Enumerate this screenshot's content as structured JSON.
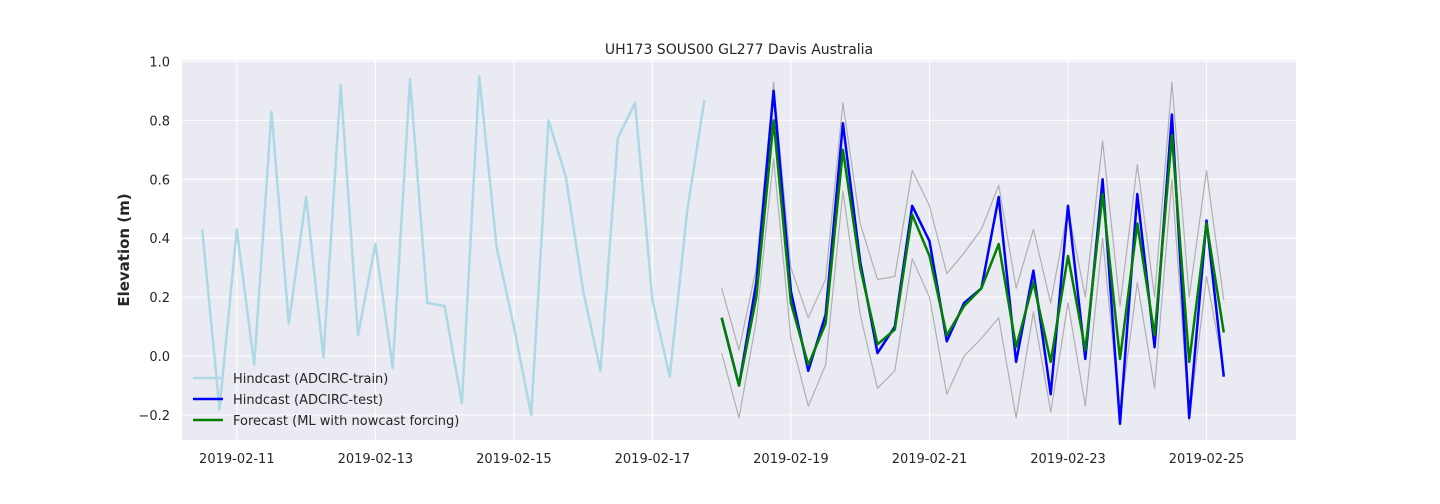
{
  "chart_data": {
    "type": "line",
    "title": "UH173 SOUS00 GL277 Davis Australia",
    "xlabel": "",
    "ylabel": "Elevation (m)",
    "xlim": [
      "2019-02-10T05:00",
      "2019-02-26T07:00"
    ],
    "ylim": [
      -0.285,
      1.005
    ],
    "x_ticks": [
      "2019-02-11",
      "2019-02-13",
      "2019-02-15",
      "2019-02-17",
      "2019-02-19",
      "2019-02-21",
      "2019-02-23",
      "2019-02-25"
    ],
    "y_ticks": [
      "−0.2",
      "0.0",
      "0.2",
      "0.4",
      "0.6",
      "0.8",
      "1.0"
    ],
    "y_tick_values": [
      -0.2,
      0.0,
      0.2,
      0.4,
      0.6,
      0.8,
      1.0
    ],
    "grid": true,
    "legend": "lower-left",
    "series": [
      {
        "name": "Hindcast (ADCIRC-train)",
        "color": "#add8e6",
        "x": [
          "2019-02-10T12:00",
          "2019-02-10T18:00",
          "2019-02-11T00:00",
          "2019-02-11T06:00",
          "2019-02-11T12:00",
          "2019-02-11T18:00",
          "2019-02-12T00:00",
          "2019-02-12T06:00",
          "2019-02-12T12:00",
          "2019-02-12T18:00",
          "2019-02-13T00:00",
          "2019-02-13T06:00",
          "2019-02-13T12:00",
          "2019-02-13T18:00",
          "2019-02-14T00:00",
          "2019-02-14T06:00",
          "2019-02-14T12:00",
          "2019-02-14T18:00",
          "2019-02-15T00:00",
          "2019-02-15T06:00",
          "2019-02-15T12:00",
          "2019-02-15T18:00",
          "2019-02-16T00:00",
          "2019-02-16T06:00",
          "2019-02-16T12:00",
          "2019-02-16T18:00",
          "2019-02-17T00:00",
          "2019-02-17T06:00",
          "2019-02-17T12:00",
          "2019-02-17T18:00"
        ],
        "values": [
          0.43,
          -0.18,
          0.43,
          -0.03,
          0.83,
          0.11,
          0.54,
          -0.005,
          0.92,
          0.07,
          0.38,
          -0.04,
          0.94,
          0.18,
          0.17,
          -0.16,
          0.95,
          0.37,
          0.1,
          -0.2,
          0.8,
          0.61,
          0.22,
          -0.05,
          0.74,
          0.86,
          0.19,
          -0.07,
          0.49,
          0.87
        ]
      },
      {
        "name": "Hindcast (ADCIRC-test)",
        "color": "#0000ff",
        "x": [
          "2019-02-18T00:00",
          "2019-02-18T06:00",
          "2019-02-18T12:00",
          "2019-02-18T18:00",
          "2019-02-19T00:00",
          "2019-02-19T06:00",
          "2019-02-19T12:00",
          "2019-02-19T18:00",
          "2019-02-20T00:00",
          "2019-02-20T06:00",
          "2019-02-20T12:00",
          "2019-02-20T18:00",
          "2019-02-21T00:00",
          "2019-02-21T06:00",
          "2019-02-21T12:00",
          "2019-02-21T18:00",
          "2019-02-22T00:00",
          "2019-02-22T06:00",
          "2019-02-22T12:00",
          "2019-02-22T18:00",
          "2019-02-23T00:00",
          "2019-02-23T06:00",
          "2019-02-23T12:00",
          "2019-02-23T18:00",
          "2019-02-24T00:00",
          "2019-02-24T06:00",
          "2019-02-24T12:00",
          "2019-02-24T18:00",
          "2019-02-25T00:00",
          "2019-02-25T06:00"
        ],
        "values": [
          0.13,
          -0.1,
          0.25,
          0.9,
          0.22,
          -0.05,
          0.14,
          0.79,
          0.32,
          0.01,
          0.1,
          0.51,
          0.39,
          0.05,
          0.18,
          0.23,
          0.54,
          -0.02,
          0.29,
          -0.13,
          0.51,
          -0.01,
          0.6,
          -0.23,
          0.55,
          0.03,
          0.82,
          -0.21,
          0.46,
          -0.07
        ]
      },
      {
        "name": "Forecast (ML with nowcast forcing)",
        "color": "#008000",
        "x": [
          "2019-02-18T00:00",
          "2019-02-18T06:00",
          "2019-02-18T12:00",
          "2019-02-18T18:00",
          "2019-02-19T00:00",
          "2019-02-19T06:00",
          "2019-02-19T12:00",
          "2019-02-19T18:00",
          "2019-02-20T00:00",
          "2019-02-20T06:00",
          "2019-02-20T12:00",
          "2019-02-20T18:00",
          "2019-02-21T00:00",
          "2019-02-21T06:00",
          "2019-02-21T12:00",
          "2019-02-21T18:00",
          "2019-02-22T00:00",
          "2019-02-22T06:00",
          "2019-02-22T12:00",
          "2019-02-22T18:00",
          "2019-02-23T00:00",
          "2019-02-23T06:00",
          "2019-02-23T12:00",
          "2019-02-23T18:00",
          "2019-02-24T00:00",
          "2019-02-24T06:00",
          "2019-02-24T12:00",
          "2019-02-24T18:00",
          "2019-02-25T00:00",
          "2019-02-25T06:00"
        ],
        "values": [
          0.13,
          -0.1,
          0.2,
          0.8,
          0.18,
          -0.03,
          0.11,
          0.7,
          0.3,
          0.04,
          0.09,
          0.48,
          0.34,
          0.07,
          0.17,
          0.23,
          0.38,
          0.03,
          0.25,
          -0.02,
          0.34,
          0.02,
          0.55,
          -0.01,
          0.45,
          0.07,
          0.75,
          -0.02,
          0.45,
          0.08
        ]
      },
      {
        "color": "#b0b0b0",
        "x": [
          "2019-02-18T00:00",
          "2019-02-18T06:00",
          "2019-02-18T12:00",
          "2019-02-18T18:00",
          "2019-02-19T00:00",
          "2019-02-19T06:00",
          "2019-02-19T12:00",
          "2019-02-19T18:00",
          "2019-02-20T00:00",
          "2019-02-20T06:00",
          "2019-02-20T12:00",
          "2019-02-20T18:00",
          "2019-02-21T00:00",
          "2019-02-21T06:00",
          "2019-02-21T12:00",
          "2019-02-21T18:00",
          "2019-02-22T00:00",
          "2019-02-22T06:00",
          "2019-02-22T12:00",
          "2019-02-22T18:00",
          "2019-02-23T00:00",
          "2019-02-23T06:00",
          "2019-02-23T12:00",
          "2019-02-23T18:00",
          "2019-02-24T00:00",
          "2019-02-24T06:00",
          "2019-02-24T12:00",
          "2019-02-24T18:00",
          "2019-02-25T00:00",
          "2019-02-25T06:00"
        ],
        "values": [
          0.23,
          0.02,
          0.3,
          0.93,
          0.3,
          0.13,
          0.26,
          0.86,
          0.45,
          0.26,
          0.27,
          0.63,
          0.51,
          0.28,
          0.35,
          0.43,
          0.58,
          0.23,
          0.43,
          0.18,
          0.5,
          0.2,
          0.73,
          0.17,
          0.65,
          0.2,
          0.93,
          0.2,
          0.63,
          0.19
        ]
      },
      {
        "color": "#b0b0b0",
        "x": [
          "2019-02-18T00:00",
          "2019-02-18T06:00",
          "2019-02-18T12:00",
          "2019-02-18T18:00",
          "2019-02-19T00:00",
          "2019-02-19T06:00",
          "2019-02-19T12:00",
          "2019-02-19T18:00",
          "2019-02-20T00:00",
          "2019-02-20T06:00",
          "2019-02-20T12:00",
          "2019-02-20T18:00",
          "2019-02-21T00:00",
          "2019-02-21T06:00",
          "2019-02-21T12:00",
          "2019-02-21T18:00",
          "2019-02-22T00:00",
          "2019-02-22T06:00",
          "2019-02-22T12:00",
          "2019-02-22T18:00",
          "2019-02-23T00:00",
          "2019-02-23T06:00",
          "2019-02-23T12:00",
          "2019-02-23T18:00",
          "2019-02-24T00:00",
          "2019-02-24T06:00",
          "2019-02-24T12:00",
          "2019-02-24T18:00",
          "2019-02-25T00:00",
          "2019-02-25T06:00"
        ],
        "values": [
          0.01,
          -0.21,
          0.12,
          0.67,
          0.06,
          -0.17,
          -0.03,
          0.56,
          0.14,
          -0.11,
          -0.05,
          0.33,
          0.2,
          -0.13,
          0.0,
          0.06,
          0.13,
          -0.21,
          0.15,
          -0.19,
          0.18,
          -0.17,
          0.4,
          -0.2,
          0.25,
          -0.11,
          0.6,
          -0.22,
          0.27,
          -0.05
        ]
      }
    ]
  }
}
